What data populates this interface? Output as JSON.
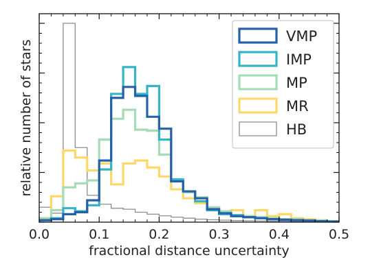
{
  "chart_data": {
    "type": "histogram",
    "xlabel": "fractional distance uncertainty",
    "ylabel": "relative number of stars",
    "xlim": [
      0.0,
      0.5
    ],
    "ylim": [
      0,
      1.0
    ],
    "x_ticks": [
      "0.0",
      "0.1",
      "0.2",
      "0.3",
      "0.4",
      "0.5"
    ],
    "y_tick_labels_shown": false,
    "legend_position": "top-right",
    "bin_edges": [
      0.0,
      0.02,
      0.04,
      0.06,
      0.08,
      0.1,
      0.12,
      0.14,
      0.16,
      0.18,
      0.2,
      0.22,
      0.24,
      0.26,
      0.28,
      0.3,
      0.32,
      0.34,
      0.36,
      0.38,
      0.4,
      0.42,
      0.44,
      0.46,
      0.48,
      0.5
    ],
    "series": [
      {
        "name": "HB",
        "color": "#8c8c8c",
        "values": [
          0.075,
          0.045,
          1.0,
          0.375,
          0.135,
          0.09,
          0.07,
          0.065,
          0.05,
          0.04,
          0.032,
          0.025,
          0.02,
          0.015,
          0.012,
          0.01,
          0.008,
          0.007,
          0.006,
          0.005,
          0.005,
          0.004,
          0.003,
          0.003,
          0.002
        ]
      },
      {
        "name": "MR",
        "color": "#ffd76a",
        "values": [
          0.01,
          0.13,
          0.36,
          0.325,
          0.26,
          0.295,
          0.19,
          0.295,
          0.31,
          0.275,
          0.23,
          0.165,
          0.12,
          0.095,
          0.06,
          0.04,
          0.06,
          0.03,
          0.06,
          0.03,
          0.04,
          0.02,
          0.015,
          0.01,
          0.005
        ]
      },
      {
        "name": "MP",
        "color": "#a6dcb5",
        "values": [
          0.02,
          0.06,
          0.175,
          0.195,
          0.21,
          0.415,
          0.52,
          0.565,
          0.465,
          0.46,
          0.34,
          0.21,
          0.15,
          0.125,
          0.075,
          0.055,
          0.035,
          0.03,
          0.025,
          0.02,
          0.015,
          0.015,
          0.01,
          0.008,
          0.005
        ]
      },
      {
        "name": "IMP",
        "color": "#35b3c7",
        "values": [
          0.01,
          0.02,
          0.07,
          0.055,
          0.085,
          0.265,
          0.645,
          0.78,
          0.645,
          0.685,
          0.415,
          0.215,
          0.155,
          0.105,
          0.06,
          0.04,
          0.035,
          0.025,
          0.02,
          0.015,
          0.012,
          0.01,
          0.008,
          0.005,
          0.003
        ]
      },
      {
        "name": "VMP",
        "color": "#2660a8",
        "values": [
          0.01,
          0.015,
          0.04,
          0.05,
          0.11,
          0.31,
          0.625,
          0.68,
          0.635,
          0.53,
          0.47,
          0.205,
          0.155,
          0.12,
          0.065,
          0.045,
          0.03,
          0.025,
          0.02,
          0.015,
          0.012,
          0.01,
          0.008,
          0.005,
          0.003
        ]
      }
    ],
    "legend_order": [
      "VMP",
      "IMP",
      "MP",
      "MR",
      "HB"
    ]
  }
}
